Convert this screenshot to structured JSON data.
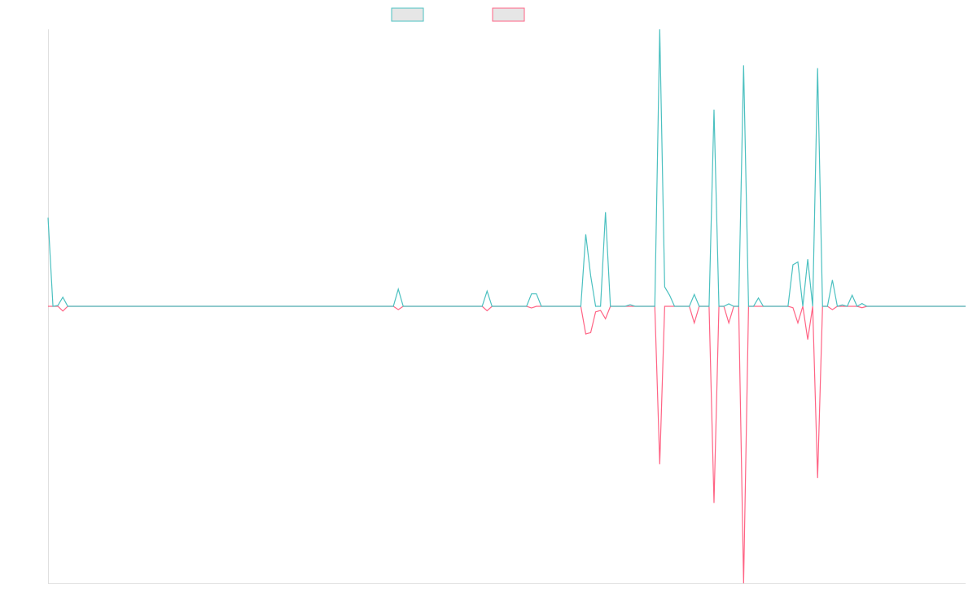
{
  "chart_data": {
    "type": "line",
    "title": "",
    "xlabel": "",
    "ylabel": "",
    "grid": false,
    "legend_position": "top-center",
    "x_count": 187,
    "ylim": [
      -1,
      1
    ],
    "colors": {
      "series_0": "#4bc0c0",
      "series_1": "#ff6384",
      "legend_fill": "#e6e6e6",
      "axis": "#e0e0e0",
      "background": "#ffffff"
    },
    "series": [
      {
        "name": "",
        "points": [
          [
            0,
            0.32
          ],
          [
            1,
            0.0
          ],
          [
            2,
            0.003
          ],
          [
            3,
            0.033
          ],
          [
            4,
            0.0
          ],
          [
            70,
            0.0
          ],
          [
            71,
            0.062
          ],
          [
            72,
            0.0
          ],
          [
            88,
            0.0
          ],
          [
            89,
            0.055
          ],
          [
            90,
            0.0
          ],
          [
            97,
            0.0
          ],
          [
            98,
            0.045
          ],
          [
            99,
            0.045
          ],
          [
            100,
            0.0
          ],
          [
            101,
            0.0
          ],
          [
            108,
            0.0
          ],
          [
            109,
            0.26
          ],
          [
            110,
            0.11
          ],
          [
            111,
            0.0
          ],
          [
            112,
            0.0
          ],
          [
            113,
            0.34
          ],
          [
            114,
            0.0
          ],
          [
            117,
            0.0
          ],
          [
            118,
            0.006
          ],
          [
            119,
            0.0
          ],
          [
            123,
            0.0
          ],
          [
            124,
            1.0
          ],
          [
            125,
            0.07
          ],
          [
            126,
            0.04
          ],
          [
            127,
            0.0
          ],
          [
            130,
            0.0
          ],
          [
            131,
            0.043
          ],
          [
            132,
            0.0
          ],
          [
            133,
            0.0
          ],
          [
            134,
            0.0
          ],
          [
            135,
            0.71
          ],
          [
            136,
            0.0
          ],
          [
            137,
            0.0
          ],
          [
            138,
            0.009
          ],
          [
            139,
            0.0
          ],
          [
            140,
            0.0
          ],
          [
            141,
            0.87
          ],
          [
            142,
            0.0
          ],
          [
            143,
            0.0
          ],
          [
            144,
            0.03
          ],
          [
            145,
            0.0
          ],
          [
            146,
            0.0
          ],
          [
            147,
            0.0
          ],
          [
            148,
            0.0
          ],
          [
            149,
            0.0
          ],
          [
            150,
            0.0
          ],
          [
            151,
            0.15
          ],
          [
            152,
            0.16
          ],
          [
            153,
            0.0
          ],
          [
            154,
            0.17
          ],
          [
            155,
            0.0
          ],
          [
            156,
            0.86
          ],
          [
            157,
            0.0
          ],
          [
            158,
            0.0
          ],
          [
            159,
            0.095
          ],
          [
            160,
            0.0
          ],
          [
            161,
            0.005
          ],
          [
            162,
            0.0
          ],
          [
            163,
            0.04
          ],
          [
            164,
            0.0
          ],
          [
            165,
            0.01
          ],
          [
            166,
            0.0
          ],
          [
            186,
            0.0
          ]
        ]
      },
      {
        "name": "",
        "points": [
          [
            0,
            0.0
          ],
          [
            1,
            0.0
          ],
          [
            2,
            0.0
          ],
          [
            3,
            -0.017
          ],
          [
            4,
            0.0
          ],
          [
            70,
            0.0
          ],
          [
            71,
            -0.012
          ],
          [
            72,
            0.0
          ],
          [
            88,
            0.0
          ],
          [
            89,
            -0.016
          ],
          [
            90,
            0.0
          ],
          [
            97,
            0.0
          ],
          [
            98,
            -0.006
          ],
          [
            99,
            0.0
          ],
          [
            100,
            0.0
          ],
          [
            101,
            0.0
          ],
          [
            108,
            0.0
          ],
          [
            109,
            -0.1
          ],
          [
            110,
            -0.095
          ],
          [
            111,
            -0.02
          ],
          [
            112,
            -0.015
          ],
          [
            113,
            -0.045
          ],
          [
            114,
            0.0
          ],
          [
            117,
            0.0
          ],
          [
            118,
            0.0
          ],
          [
            119,
            0.0
          ],
          [
            123,
            0.0
          ],
          [
            124,
            -0.57
          ],
          [
            125,
            0.0
          ],
          [
            126,
            0.0
          ],
          [
            127,
            0.0
          ],
          [
            130,
            0.0
          ],
          [
            131,
            -0.06
          ],
          [
            132,
            0.0
          ],
          [
            133,
            0.0
          ],
          [
            134,
            0.0
          ],
          [
            135,
            -0.71
          ],
          [
            136,
            0.0
          ],
          [
            137,
            0.0
          ],
          [
            138,
            -0.06
          ],
          [
            139,
            0.0
          ],
          [
            140,
            0.0
          ],
          [
            141,
            -1.0
          ],
          [
            142,
            0.0
          ],
          [
            143,
            0.0
          ],
          [
            144,
            0.0
          ],
          [
            145,
            0.0
          ],
          [
            146,
            0.0
          ],
          [
            147,
            0.0
          ],
          [
            148,
            0.0
          ],
          [
            149,
            0.0
          ],
          [
            150,
            0.0
          ],
          [
            151,
            -0.005
          ],
          [
            152,
            -0.06
          ],
          [
            153,
            0.0
          ],
          [
            154,
            -0.12
          ],
          [
            155,
            0.0
          ],
          [
            156,
            -0.62
          ],
          [
            157,
            0.0
          ],
          [
            158,
            0.0
          ],
          [
            159,
            -0.012
          ],
          [
            160,
            0.0
          ],
          [
            161,
            0.0
          ],
          [
            162,
            0.0
          ],
          [
            163,
            0.0
          ],
          [
            164,
            0.0
          ],
          [
            165,
            -0.005
          ],
          [
            166,
            0.0
          ],
          [
            186,
            0.0
          ]
        ]
      }
    ]
  }
}
